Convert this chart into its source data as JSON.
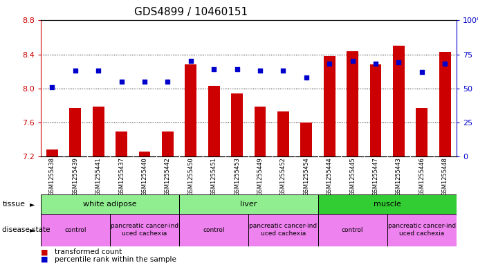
{
  "title": "GDS4899 / 10460151",
  "samples": [
    "GSM1255438",
    "GSM1255439",
    "GSM1255441",
    "GSM1255437",
    "GSM1255440",
    "GSM1255442",
    "GSM1255450",
    "GSM1255451",
    "GSM1255453",
    "GSM1255449",
    "GSM1255452",
    "GSM1255454",
    "GSM1255444",
    "GSM1255445",
    "GSM1255447",
    "GSM1255443",
    "GSM1255446",
    "GSM1255448"
  ],
  "red_values": [
    7.28,
    7.77,
    7.79,
    7.49,
    7.26,
    7.49,
    8.28,
    8.03,
    7.94,
    7.79,
    7.73,
    7.6,
    8.38,
    8.44,
    8.28,
    8.5,
    7.77,
    8.43
  ],
  "blue_values": [
    51,
    63,
    63,
    55,
    55,
    55,
    70,
    64,
    64,
    63,
    63,
    58,
    68,
    70,
    68,
    69,
    62,
    68
  ],
  "ylim_left": [
    7.2,
    8.8
  ],
  "ylim_right": [
    0,
    100
  ],
  "yticks_left": [
    7.2,
    7.6,
    8.0,
    8.4,
    8.8
  ],
  "yticks_right": [
    0,
    25,
    50,
    75,
    100
  ],
  "grid_values": [
    7.6,
    8.0,
    8.4
  ],
  "tissue_groups": [
    {
      "label": "white adipose",
      "start": 0,
      "end": 6,
      "color": "#90EE90"
    },
    {
      "label": "liver",
      "start": 6,
      "end": 12,
      "color": "#90EE90"
    },
    {
      "label": "muscle",
      "start": 12,
      "end": 18,
      "color": "#32CD32"
    }
  ],
  "disease_groups": [
    {
      "label": "control",
      "start": 0,
      "end": 3,
      "color": "#EE82EE"
    },
    {
      "label": "pancreatic cancer-ind\nuced cachexia",
      "start": 3,
      "end": 6,
      "color": "#EE82EE"
    },
    {
      "label": "control",
      "start": 6,
      "end": 9,
      "color": "#EE82EE"
    },
    {
      "label": "pancreatic cancer-ind\nuced cachexia",
      "start": 9,
      "end": 12,
      "color": "#EE82EE"
    },
    {
      "label": "control",
      "start": 12,
      "end": 15,
      "color": "#EE82EE"
    },
    {
      "label": "pancreatic cancer-ind\nuced cachexia",
      "start": 15,
      "end": 18,
      "color": "#EE82EE"
    }
  ],
  "bar_color": "#CC0000",
  "dot_color": "#0000CC",
  "bar_width": 0.5,
  "title_fontsize": 11,
  "tick_color_left": "#CC0000",
  "tick_color_right": "#0000CC",
  "sample_bg": "#C8C8C8"
}
